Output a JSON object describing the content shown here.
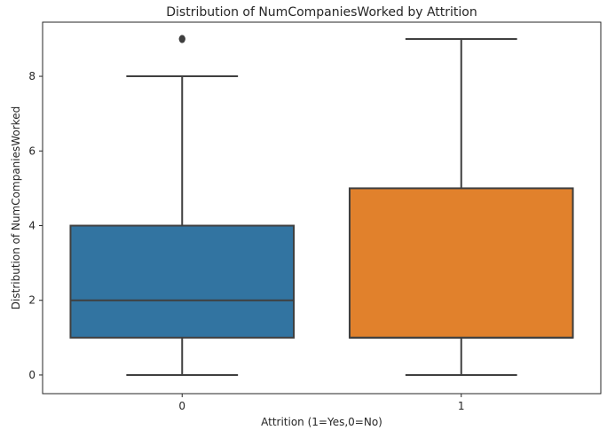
{
  "chart_data": {
    "type": "box",
    "title": "Distribution of NumCompaniesWorked by Attrition",
    "xlabel": "Attrition (1=Yes,0=No)",
    "ylabel": "Distribution of NumCompaniesWorked",
    "ylim": [
      -0.5,
      9.45
    ],
    "yticks": [
      0,
      2,
      4,
      6,
      8
    ],
    "categories": [
      "0",
      "1"
    ],
    "grid": false,
    "series": [
      {
        "category": "0",
        "color": "#3274a1",
        "whisker_low": 0,
        "q1": 1,
        "median": 2,
        "q3": 4,
        "whisker_high": 8,
        "outliers": [
          9,
          9,
          9
        ]
      },
      {
        "category": "1",
        "color": "#e1812c",
        "whisker_low": 0,
        "q1": 1,
        "median": 1,
        "q3": 5,
        "whisker_high": 9,
        "outliers": []
      }
    ]
  }
}
